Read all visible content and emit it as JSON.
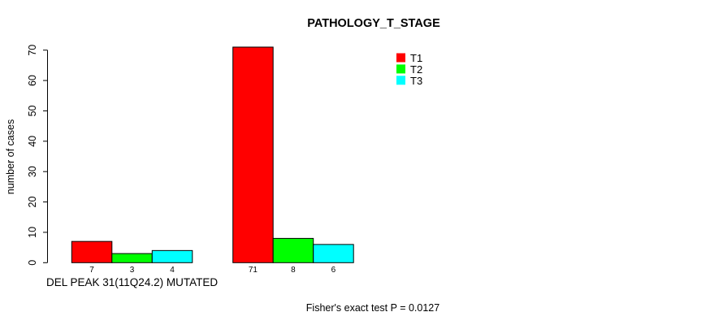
{
  "chart_data": {
    "type": "bar",
    "title": "PATHOLOGY_T_STAGE",
    "xlabel": "",
    "ylabel": "number of cases",
    "groups": [
      "DEL PEAK 31(11Q24.2) MUTATED",
      ""
    ],
    "series": [
      {
        "name": "T1",
        "color": "#FF0000",
        "values": [
          7,
          71
        ]
      },
      {
        "name": "T2",
        "color": "#00FF00",
        "values": [
          3,
          8
        ]
      },
      {
        "name": "T3",
        "color": "#00FFFF",
        "values": [
          4,
          6
        ]
      }
    ],
    "bar_value_labels": [
      [
        "7",
        "3",
        "4"
      ],
      [
        "71",
        "8",
        "6"
      ]
    ],
    "ylim": [
      0,
      70
    ],
    "yticks": [
      0,
      10,
      20,
      30,
      40,
      50,
      60,
      70
    ],
    "grid": false,
    "legend_position": "top-right",
    "bar_border_color": "#000000",
    "annotation": "Fisher's exact test P = 0.0127"
  }
}
